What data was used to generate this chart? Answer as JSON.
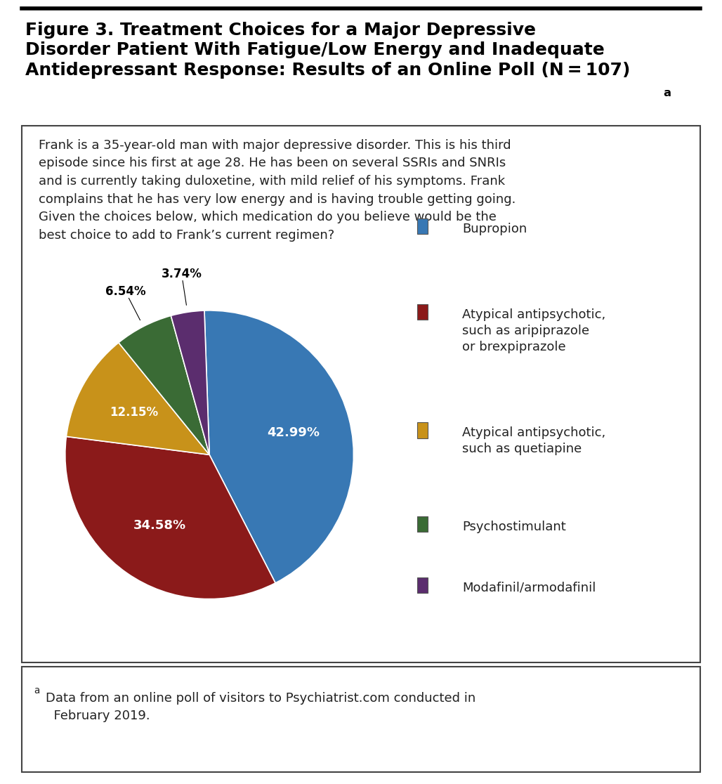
{
  "title_line1": "Figure 3. Treatment Choices for a Major Depressive",
  "title_line2": "Disorder Patient With Fatigue/Low Energy and Inadequate",
  "title_line3": "Antidepressant Response: Results of an Online Poll (N = 107)",
  "title_superscript": "a",
  "case_text": "Frank is a 35-year-old man with major depressive disorder. This is his third\nepisode since his first at age 28. He has been on several SSRIs and SNRIs\nand is currently taking duloxetine, with mild relief of his symptoms. Frank\ncomplains that he has very low energy and is having trouble getting going.\nGiven the choices below, which medication do you believe would be the\nbest choice to add to Frank’s current regimen?",
  "footnote_super": "a",
  "footnote_text": "Data from an online poll of visitors to Psychiatrist.com conducted in\n  February 2019.",
  "slices": [
    42.99,
    34.58,
    12.15,
    6.54,
    3.74
  ],
  "labels": [
    "42.99%",
    "34.58%",
    "12.15%",
    "6.54%",
    "3.74%"
  ],
  "colors": [
    "#3878b4",
    "#8b1a1a",
    "#c8921a",
    "#3a6b35",
    "#5b2d6e"
  ],
  "legend_labels": [
    "Bupropion",
    "Atypical antipsychotic,\nsuch as aripiprazole\nor brexpiprazole",
    "Atypical antipsychotic,\nsuch as quetiapine",
    "Psychostimulant",
    "Modafinil/armodafinil"
  ],
  "bg_color": "#ffffff",
  "border_color": "#444444",
  "title_color": "#000000",
  "text_color": "#222222",
  "pie_startangle": 92,
  "label_inside_fontsize": 13,
  "label_outside_fontsize": 12,
  "case_fontsize": 13,
  "legend_fontsize": 13,
  "title_fontsize": 18,
  "footnote_fontsize": 13
}
